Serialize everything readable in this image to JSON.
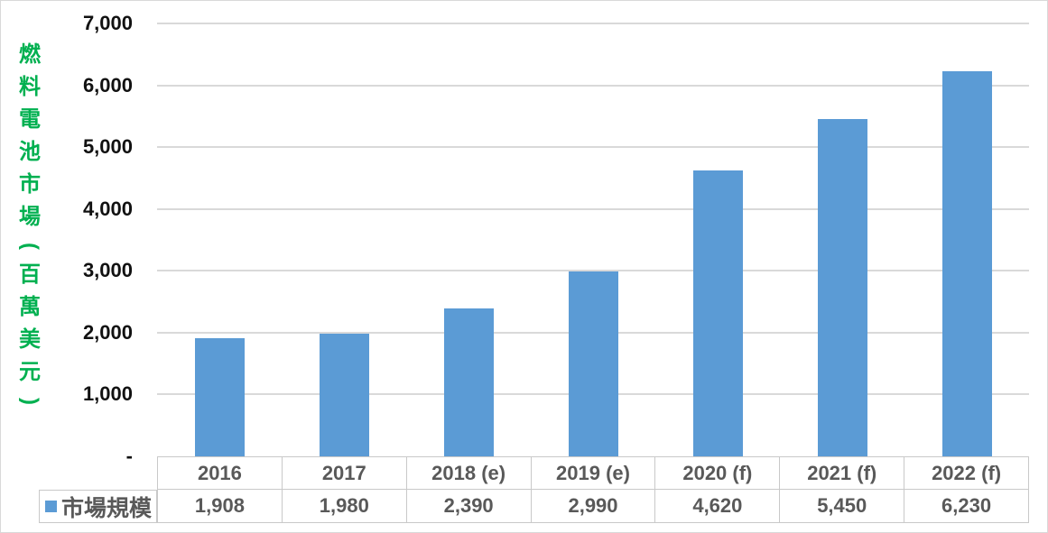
{
  "colors": {
    "bar": "#5B9BD5",
    "gridline": "#D9D9D9",
    "axis_title": "#00B050",
    "table_text": "#595959",
    "tick_text": "#111111",
    "table_border": "#C9C9C9"
  },
  "legend": {
    "series_label": "市場規模",
    "swatch_color": "#5B9BD5"
  },
  "y_axis": {
    "title": "燃料電池市場(百萬美元)",
    "tick_labels": [
      "7,000",
      "6,000",
      "5,000",
      "4,000",
      "3,000",
      "2,000",
      "1,000",
      "-"
    ],
    "tick_values": [
      7000,
      6000,
      5000,
      4000,
      3000,
      2000,
      1000,
      0
    ]
  },
  "chart_data": {
    "type": "bar",
    "title": "",
    "xlabel": "",
    "ylabel": "燃料電池市場(百萬美元)",
    "categories": [
      "2016",
      "2017",
      "2018 (e)",
      "2019 (e)",
      "2020 (f)",
      "2021 (f)",
      "2022 (f)"
    ],
    "series": [
      {
        "name": "市場規模",
        "values": [
          1908,
          1980,
          2390,
          2990,
          4620,
          5450,
          6230
        ]
      }
    ],
    "value_labels": [
      "1,908",
      "1,980",
      "2,390",
      "2,990",
      "4,620",
      "5,450",
      "6,230"
    ],
    "ylim": [
      0,
      7000
    ],
    "ytick_step": 1000,
    "grid": true,
    "legend_position": "bottom-left-data-table",
    "bar_color": "#5B9BD5",
    "gridline_color": "#D9D9D9"
  }
}
